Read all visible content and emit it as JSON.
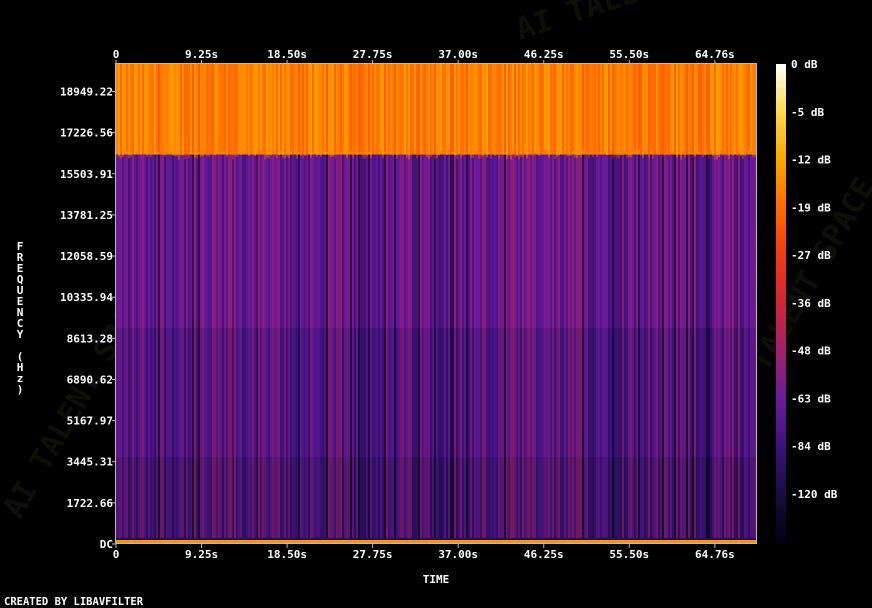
{
  "chart_data": {
    "type": "heatmap",
    "title": "",
    "xlabel": "TIME",
    "ylabel": "FREQUENCY (Hz)",
    "x_ticks": [
      "0",
      "9.25s",
      "18.50s",
      "27.75s",
      "37.00s",
      "46.25s",
      "55.50s",
      "64.76s"
    ],
    "y_ticks": [
      "DC",
      "1722.66",
      "3445.31",
      "5167.97",
      "6890.62",
      "8613.28",
      "10335.94",
      "12058.59",
      "13781.25",
      "15503.91",
      "17226.56",
      "18949.22"
    ],
    "colorbar_ticks": [
      "0 dB",
      "-5 dB",
      "-12 dB",
      "-19 dB",
      "-27 dB",
      "-36 dB",
      "-48 dB",
      "-63 dB",
      "-84 dB",
      "-120 dB"
    ],
    "colorbar_range_db": [
      -120,
      0
    ],
    "colormap": [
      "#000010",
      "#1a0b3d",
      "#3b127a",
      "#6a1b9a",
      "#a0206b",
      "#d2233a",
      "#f03a10",
      "#ff6a00",
      "#ffa500",
      "#ffd84a",
      "#ffffff"
    ],
    "x_range_s": [
      0,
      69.2
    ],
    "y_range_hz": [
      0,
      20100
    ],
    "cutoff_hz": 16300,
    "level_db_by_band": {
      "above_cutoff": -24,
      "upper_mid": -70,
      "lower_mid": -80,
      "low": -90
    }
  },
  "footer": {
    "credit": "CREATED BY LIBAVFILTER"
  },
  "watermark": {
    "text": "AI TALENT SPACE"
  }
}
